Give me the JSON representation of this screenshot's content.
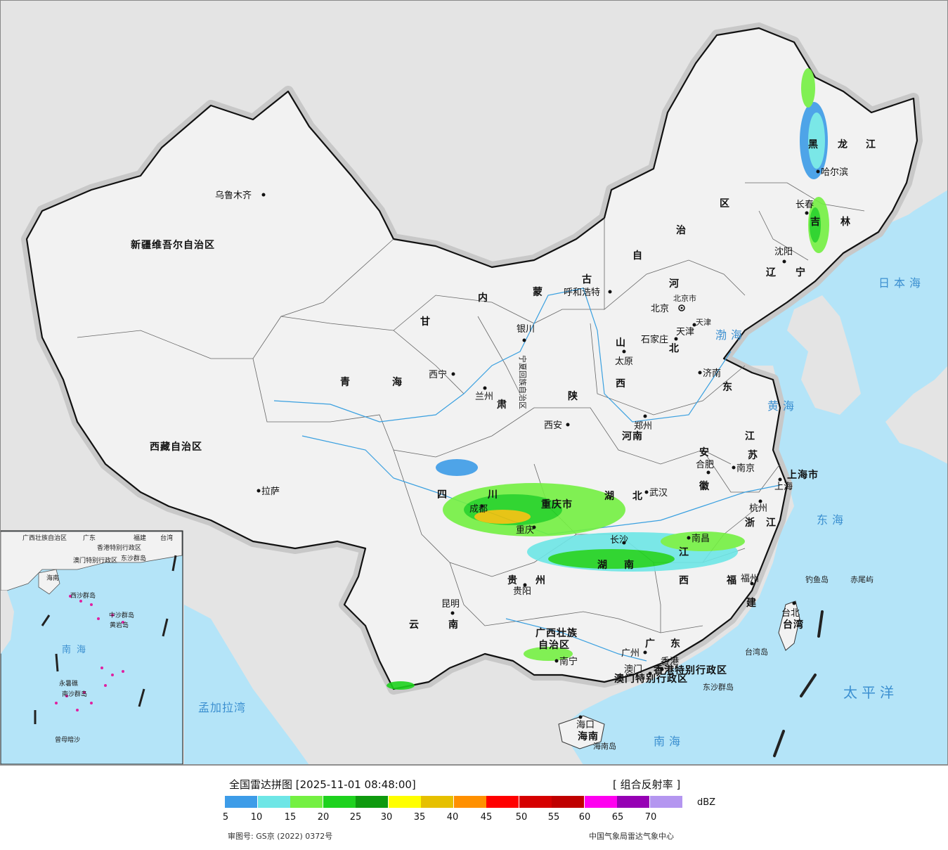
{
  "legend": {
    "title": "全国雷达拼图 [2025-11-01 08:48:00]",
    "product": "[ 组合反射率 ]",
    "unit": "dBZ",
    "ticks": [
      "5",
      "10",
      "15",
      "20",
      "25",
      "30",
      "35",
      "40",
      "45",
      "50",
      "55",
      "60",
      "65",
      "70"
    ],
    "colors": [
      "#3d9ce8",
      "#6ee6e6",
      "#74f042",
      "#1ed21e",
      "#0e9a0e",
      "#ffff00",
      "#e6c000",
      "#ff9000",
      "#ff0000",
      "#d60000",
      "#c00000",
      "#ff00f0",
      "#9600b4",
      "#b496f0"
    ],
    "approval": "审图号: GS京 (2022) 0372号",
    "source": "中国气象局雷达气象中心"
  },
  "map": {
    "colors": {
      "sea": "#b4e4f8",
      "land_china": "#f2f2f2",
      "land_other": "#e4e4e4",
      "border": "#111111",
      "halo": "#c8c8c8"
    },
    "provinces": [
      "新疆维吾尔自治区",
      "西藏自治区",
      "青",
      "海",
      "甘",
      "肃",
      "内",
      "蒙",
      "古",
      "自",
      "治",
      "区",
      "黑",
      "龙",
      "江",
      "吉",
      "林",
      "辽",
      "宁",
      "河",
      "北",
      "山",
      "西",
      "东",
      "陕",
      "四",
      "川",
      "重庆市",
      "湖",
      "北",
      "河南",
      "安",
      "徽",
      "江",
      "苏",
      "浙",
      "江",
      "江",
      "西",
      "湖",
      "南",
      "贵",
      "州",
      "云",
      "南",
      "广西壮族",
      "自治区",
      "广",
      "东",
      "福",
      "建",
      "台湾",
      "海南",
      "上海市",
      "天津",
      "北京市",
      "宁夏回族自治区",
      "香港特别行政区",
      "澳门特别行政区"
    ],
    "cities": [
      "乌鲁木齐",
      "拉萨",
      "西宁",
      "兰州",
      "银川",
      "呼和浩特",
      "北京",
      "天津",
      "石家庄",
      "太原",
      "济南",
      "郑州",
      "西安",
      "成都",
      "重庆",
      "武汉",
      "合肥",
      "南京",
      "上海",
      "杭州",
      "南昌",
      "长沙",
      "贵阳",
      "昆明",
      "南宁",
      "广州",
      "香港",
      "澳门",
      "福州",
      "台北",
      "海口",
      "哈尔滨",
      "长春",
      "沈阳"
    ],
    "seas": [
      "日本海",
      "渤海",
      "黄海",
      "东海",
      "太平洋",
      "南海",
      "孟加拉湾"
    ],
    "islands": [
      "钓鱼岛",
      "赤尾屿",
      "台湾岛",
      "东沙群岛",
      "海南岛"
    ],
    "inset": [
      "广西壮族自治区",
      "广东",
      "福建",
      "台湾",
      "香港特别行政区",
      "澳门特别行政区",
      "东沙群岛",
      "海南",
      "西沙群岛",
      "中沙群岛",
      "黄岩岛",
      "南海",
      "南沙群岛",
      "永暑礁",
      "曾母暗沙"
    ]
  }
}
